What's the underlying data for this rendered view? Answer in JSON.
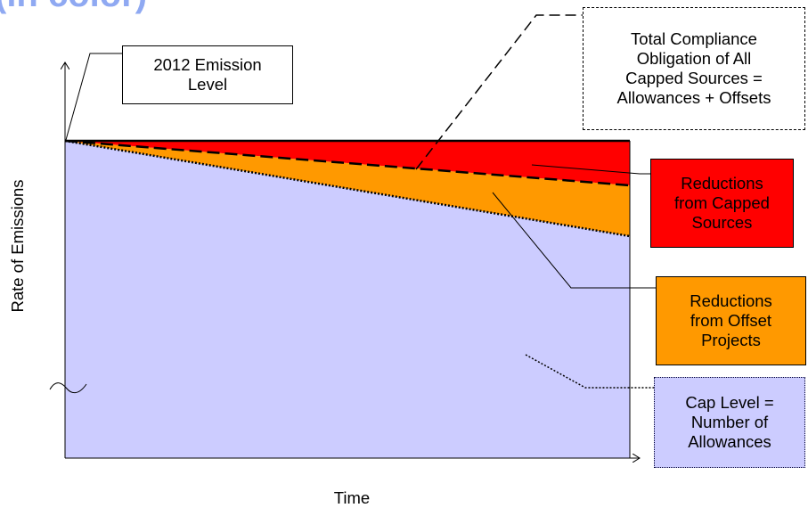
{
  "header": {
    "title_fragment": "(in color)"
  },
  "labels": {
    "emission_2012": "2012 Emission\nLevel",
    "total_compliance": "Total Compliance\nObligation of All\nCapped Sources =\nAllowances + Offsets",
    "reductions_capped": "Reductions\nfrom Capped\nSources",
    "reductions_offset": "Reductions\nfrom Offset\nProjects",
    "cap_level": "Cap Level =\nNumber of\nAllowances"
  },
  "axes": {
    "xlabel": "Time",
    "ylabel": "Rate of Emissions"
  },
  "colors": {
    "capped_reductions": "#ff0000",
    "offset_reductions": "#ff9900",
    "cap_level": "#ccccff",
    "title_fragment": "#8fa9f2"
  }
}
